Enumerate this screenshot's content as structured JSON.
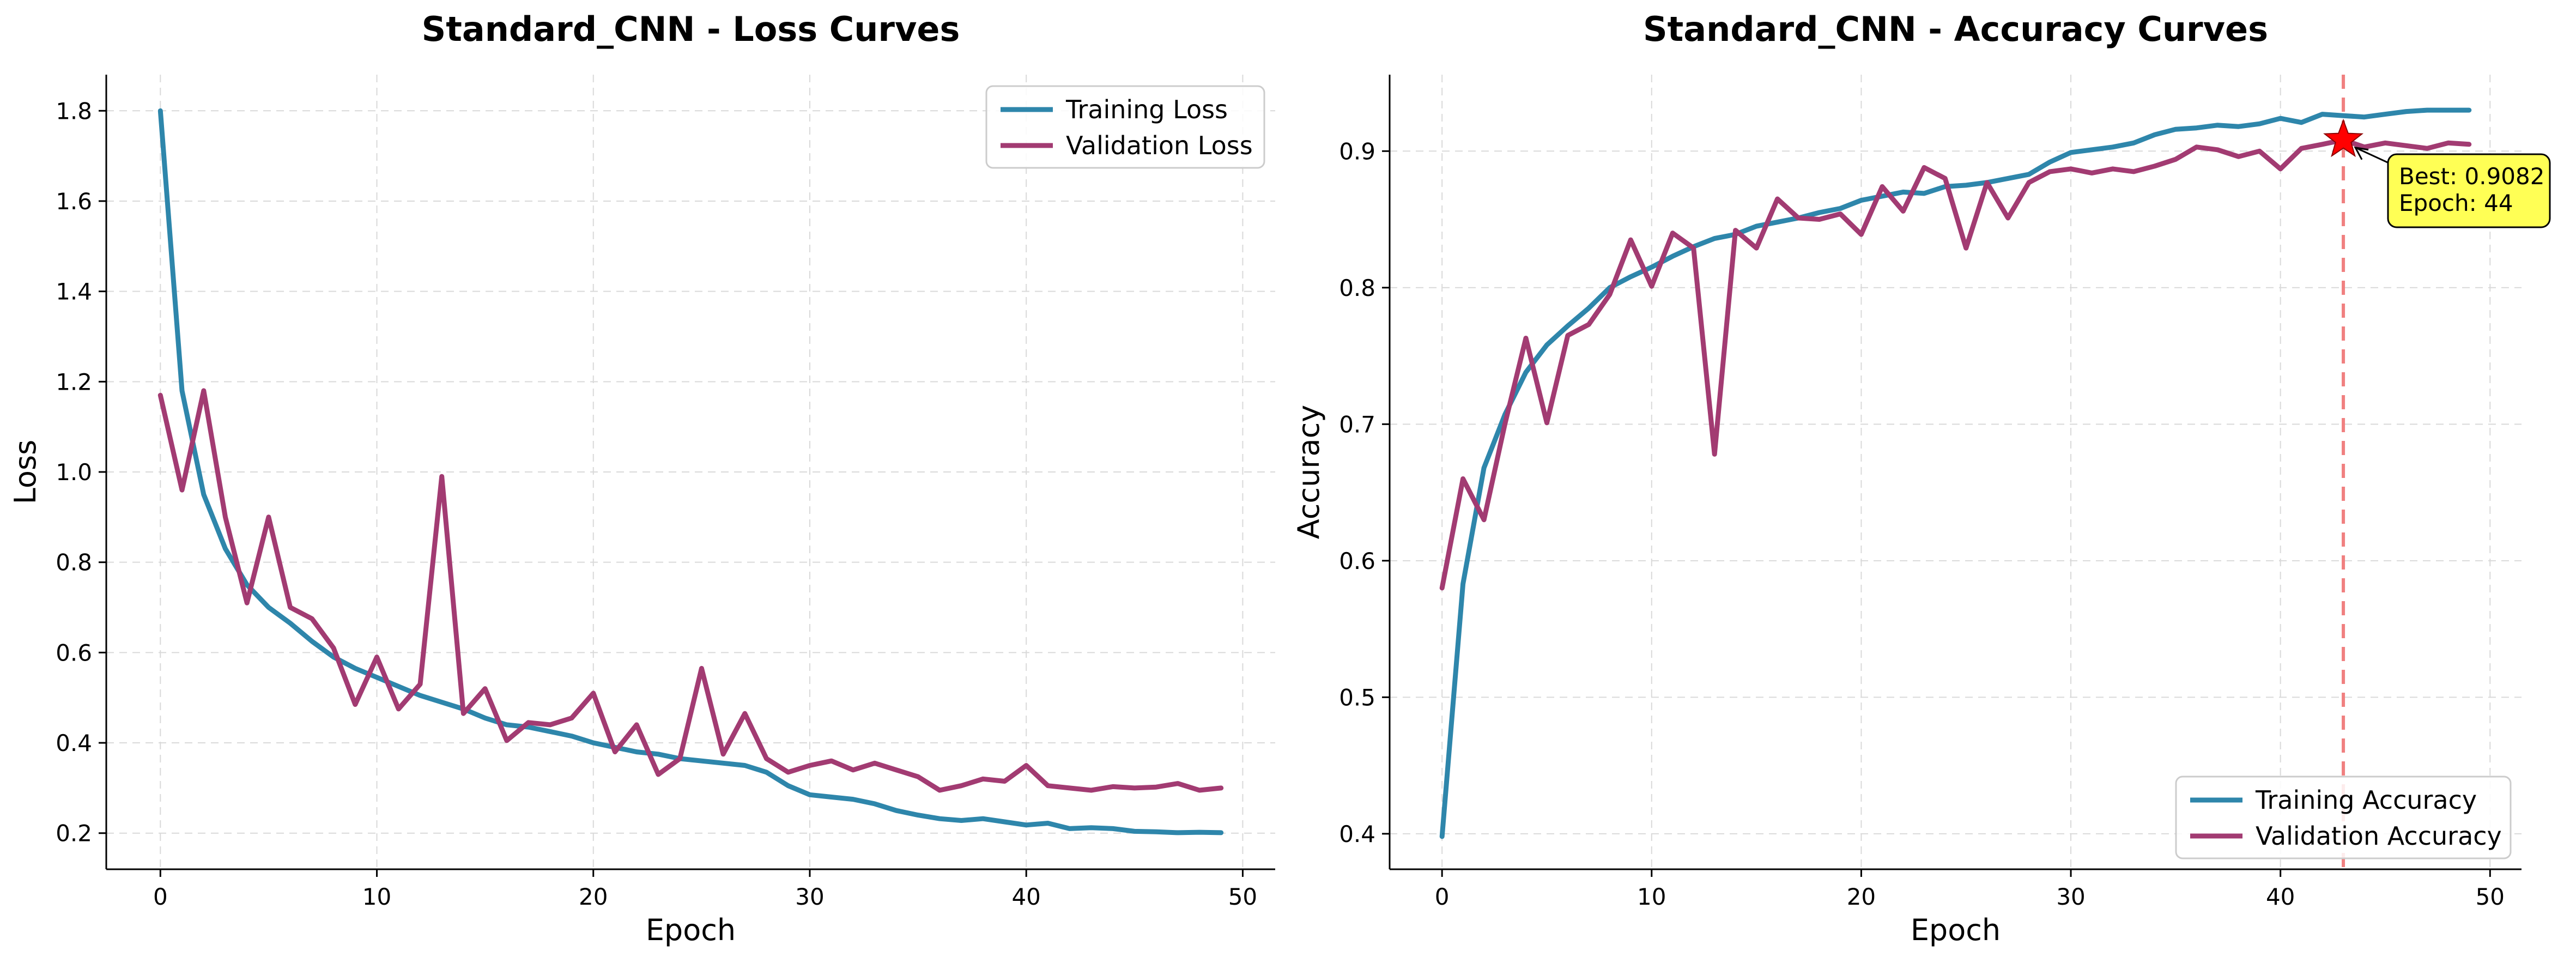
{
  "chart_data": [
    {
      "type": "line",
      "title": "Standard_CNN - Loss Curves",
      "xlabel": "Epoch",
      "ylabel": "Loss",
      "xlim": [
        -2.5,
        51.5
      ],
      "ylim": [
        0.12,
        1.88
      ],
      "xticks": [
        0,
        10,
        20,
        30,
        40,
        50
      ],
      "yticks": [
        0.2,
        0.4,
        0.6,
        0.8,
        1.0,
        1.2,
        1.4,
        1.6,
        1.8
      ],
      "tick_decimals": 1,
      "grid": true,
      "legend_position": "upper right",
      "x": [
        0,
        1,
        2,
        3,
        4,
        5,
        6,
        7,
        8,
        9,
        10,
        11,
        12,
        13,
        14,
        15,
        16,
        17,
        18,
        19,
        20,
        21,
        22,
        23,
        24,
        25,
        26,
        27,
        28,
        29,
        30,
        31,
        32,
        33,
        34,
        35,
        36,
        37,
        38,
        39,
        40,
        41,
        42,
        43,
        44,
        45,
        46,
        47,
        48,
        49
      ],
      "series": [
        {
          "name": "Training Loss",
          "color": "#2e86ab",
          "values": [
            1.8,
            1.18,
            0.95,
            0.83,
            0.75,
            0.7,
            0.665,
            0.625,
            0.59,
            0.565,
            0.545,
            0.525,
            0.505,
            0.49,
            0.475,
            0.455,
            0.44,
            0.435,
            0.425,
            0.415,
            0.4,
            0.39,
            0.38,
            0.375,
            0.365,
            0.36,
            0.355,
            0.35,
            0.335,
            0.305,
            0.285,
            0.28,
            0.275,
            0.265,
            0.25,
            0.24,
            0.232,
            0.228,
            0.232,
            0.225,
            0.218,
            0.222,
            0.21,
            0.212,
            0.21,
            0.204,
            0.203,
            0.201,
            0.202,
            0.201
          ]
        },
        {
          "name": "Validation Loss",
          "color": "#a23b72",
          "values": [
            1.17,
            0.96,
            1.18,
            0.9,
            0.71,
            0.9,
            0.7,
            0.675,
            0.61,
            0.485,
            0.59,
            0.475,
            0.53,
            0.99,
            0.465,
            0.52,
            0.405,
            0.445,
            0.44,
            0.455,
            0.51,
            0.38,
            0.44,
            0.33,
            0.365,
            0.565,
            0.375,
            0.465,
            0.365,
            0.335,
            0.35,
            0.36,
            0.34,
            0.355,
            0.34,
            0.325,
            0.295,
            0.305,
            0.32,
            0.315,
            0.35,
            0.305,
            0.3,
            0.295,
            0.303,
            0.3,
            0.302,
            0.31,
            0.295,
            0.3
          ]
        }
      ]
    },
    {
      "type": "line",
      "title": "Standard_CNN - Accuracy Curves",
      "xlabel": "Epoch",
      "ylabel": "Accuracy",
      "xlim": [
        -2.5,
        51.5
      ],
      "ylim": [
        0.374,
        0.956
      ],
      "xticks": [
        0,
        10,
        20,
        30,
        40,
        50
      ],
      "yticks": [
        0.4,
        0.5,
        0.6,
        0.7,
        0.8,
        0.9
      ],
      "tick_decimals": 1,
      "grid": true,
      "legend_position": "lower right",
      "x": [
        0,
        1,
        2,
        3,
        4,
        5,
        6,
        7,
        8,
        9,
        10,
        11,
        12,
        13,
        14,
        15,
        16,
        17,
        18,
        19,
        20,
        21,
        22,
        23,
        24,
        25,
        26,
        27,
        28,
        29,
        30,
        31,
        32,
        33,
        34,
        35,
        36,
        37,
        38,
        39,
        40,
        41,
        42,
        43,
        44,
        45,
        46,
        47,
        48,
        49
      ],
      "series": [
        {
          "name": "Training Accuracy",
          "color": "#2e86ab",
          "values": [
            0.398,
            0.583,
            0.668,
            0.707,
            0.738,
            0.758,
            0.772,
            0.785,
            0.8,
            0.808,
            0.815,
            0.823,
            0.83,
            0.836,
            0.839,
            0.845,
            0.848,
            0.851,
            0.855,
            0.858,
            0.864,
            0.867,
            0.87,
            0.869,
            0.874,
            0.875,
            0.877,
            0.88,
            0.883,
            0.892,
            0.899,
            0.901,
            0.903,
            0.906,
            0.912,
            0.916,
            0.917,
            0.919,
            0.918,
            0.92,
            0.924,
            0.921,
            0.927,
            0.926,
            0.925,
            0.927,
            0.929,
            0.93,
            0.93,
            0.93
          ]
        },
        {
          "name": "Validation Accuracy",
          "color": "#a23b72",
          "values": [
            0.58,
            0.66,
            0.63,
            0.7,
            0.763,
            0.701,
            0.765,
            0.773,
            0.795,
            0.835,
            0.801,
            0.84,
            0.829,
            0.678,
            0.842,
            0.829,
            0.865,
            0.851,
            0.85,
            0.854,
            0.839,
            0.874,
            0.856,
            0.888,
            0.88,
            0.829,
            0.877,
            0.851,
            0.877,
            0.885,
            0.887,
            0.884,
            0.887,
            0.885,
            0.889,
            0.894,
            0.903,
            0.901,
            0.896,
            0.9,
            0.887,
            0.902,
            0.905,
            0.9082,
            0.903,
            0.906,
            0.904,
            0.902,
            0.906,
            0.905
          ]
        }
      ],
      "best_marker": {
        "epoch_index": 43,
        "value": 0.9082,
        "text_line1": "Best: 0.9082",
        "text_line2": "Epoch: 44",
        "line_color": "#f08080",
        "star_color": "#ff0000",
        "box_color": "#ffff55"
      }
    }
  ]
}
